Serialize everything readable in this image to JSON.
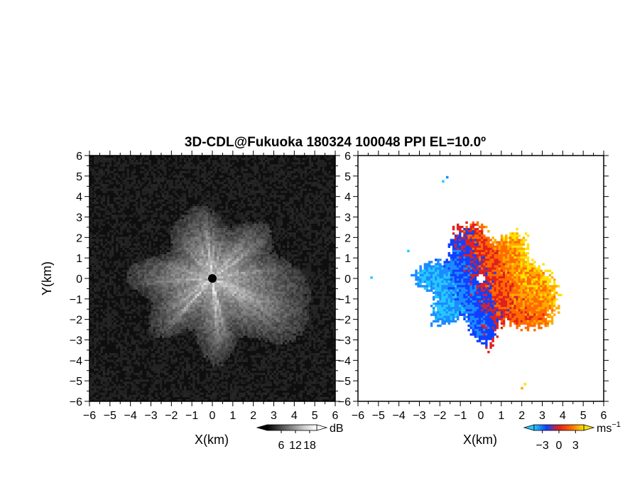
{
  "chart_data": {
    "type": "heatmap",
    "title": "3D-CDL@Fukuoka 180324 100048 PPI EL=10.0º",
    "panels": [
      {
        "name": "left",
        "quantity": "SNR",
        "xlabel": "X(km)",
        "ylabel": "Y(km)",
        "xlim": [
          -6,
          6
        ],
        "ylim": [
          -6,
          6
        ],
        "ticks": [
          -6,
          -5,
          -4,
          -3,
          -2,
          -1,
          0,
          1,
          2,
          3,
          4,
          5,
          6
        ],
        "colorbar": {
          "unit": "dB",
          "tick_labels": [
            "6",
            "12",
            "18"
          ],
          "range": [
            0,
            21
          ],
          "colormap": "grayscale"
        }
      },
      {
        "name": "right",
        "quantity": "radial-velocity",
        "xlabel": "X(km)",
        "xlim": [
          -6,
          6
        ],
        "ylim": [
          -6,
          6
        ],
        "ticks": [
          -6,
          -5,
          -4,
          -3,
          -2,
          -1,
          0,
          1,
          2,
          3,
          4,
          5,
          6
        ],
        "colorbar": {
          "unit": "ms",
          "unit_exponent": "−1",
          "tick_labels": [
            "−3",
            "0",
            "3"
          ],
          "range": [
            -4.5,
            4.5
          ],
          "colormap": "blue-red-yellow"
        }
      }
    ]
  },
  "colors": {
    "background": "#ffffff",
    "frame": "#000000",
    "negative": "#1060ff",
    "positive": "#ff5a00",
    "extreme": "#ffd400"
  }
}
